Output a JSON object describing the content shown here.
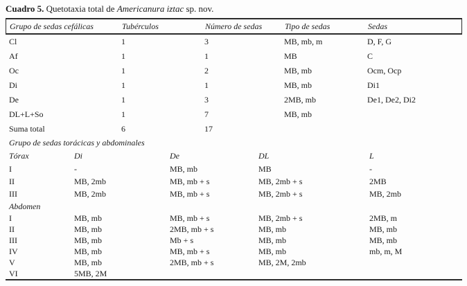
{
  "page": {
    "background": "#fdfdfd",
    "text_color": "#1c1c1c",
    "rule_color": "#2b2b2b"
  },
  "title": {
    "label": "Cuadro 5.",
    "lead": " Quetotaxia total de ",
    "species": "Americanura iztac",
    "tail": " sp. nov."
  },
  "cephalic": {
    "columns": [
      "Grupo de sedas cefálicas",
      "Tubérculos",
      "Número de sedas",
      "Tipo de sedas",
      "Sedas"
    ],
    "rows": [
      [
        "Cl",
        "1",
        "3",
        "MB, mb, m",
        "D, F, G"
      ],
      [
        "Af",
        "1",
        "1",
        "MB",
        "C"
      ],
      [
        "Oc",
        "1",
        "2",
        "MB, mb",
        "Ocm, Ocp"
      ],
      [
        "Di",
        "1",
        "1",
        "MB, mb",
        "Di1"
      ],
      [
        "De",
        "1",
        "3",
        "2MB, mb",
        "De1, De2, Di2"
      ],
      [
        "DL+L+So",
        "1",
        "7",
        "MB, mb",
        ""
      ],
      [
        "Suma total",
        "6",
        "17",
        "",
        ""
      ]
    ]
  },
  "thoracic": {
    "section_title": "Grupo de sedas torácicas y abdominales",
    "columns": [
      "Tórax",
      "Di",
      "De",
      "DL",
      "L"
    ],
    "thorax_rows": [
      [
        "I",
        "-",
        "MB, mb",
        "MB",
        "-"
      ],
      [
        "II",
        "MB, 2mb",
        "MB, mb + s",
        "MB, 2mb + s",
        "2MB"
      ],
      [
        "III",
        "MB, 2mb",
        "MB, mb + s",
        "MB, 2mb + s",
        "MB, 2mb"
      ]
    ],
    "abdomen_label": "Abdomen",
    "abdomen_rows": [
      [
        "I",
        "MB, mb",
        "MB, mb + s",
        "MB, 2mb + s",
        "2MB, m"
      ],
      [
        "II",
        "MB, mb",
        "2MB, mb + s",
        "MB, mb",
        "MB, mb"
      ],
      [
        "III",
        "MB, mb",
        "Mb + s",
        "MB, mb",
        "MB, mb"
      ],
      [
        "IV",
        "MB, mb",
        "MB, mb + s",
        "MB, mb",
        "mb, m, M"
      ],
      [
        "V",
        "MB, mb",
        "2MB, mb + s",
        "MB, 2M, 2mb",
        ""
      ],
      [
        "VI",
        "5MB, 2M",
        "",
        "",
        ""
      ]
    ]
  }
}
